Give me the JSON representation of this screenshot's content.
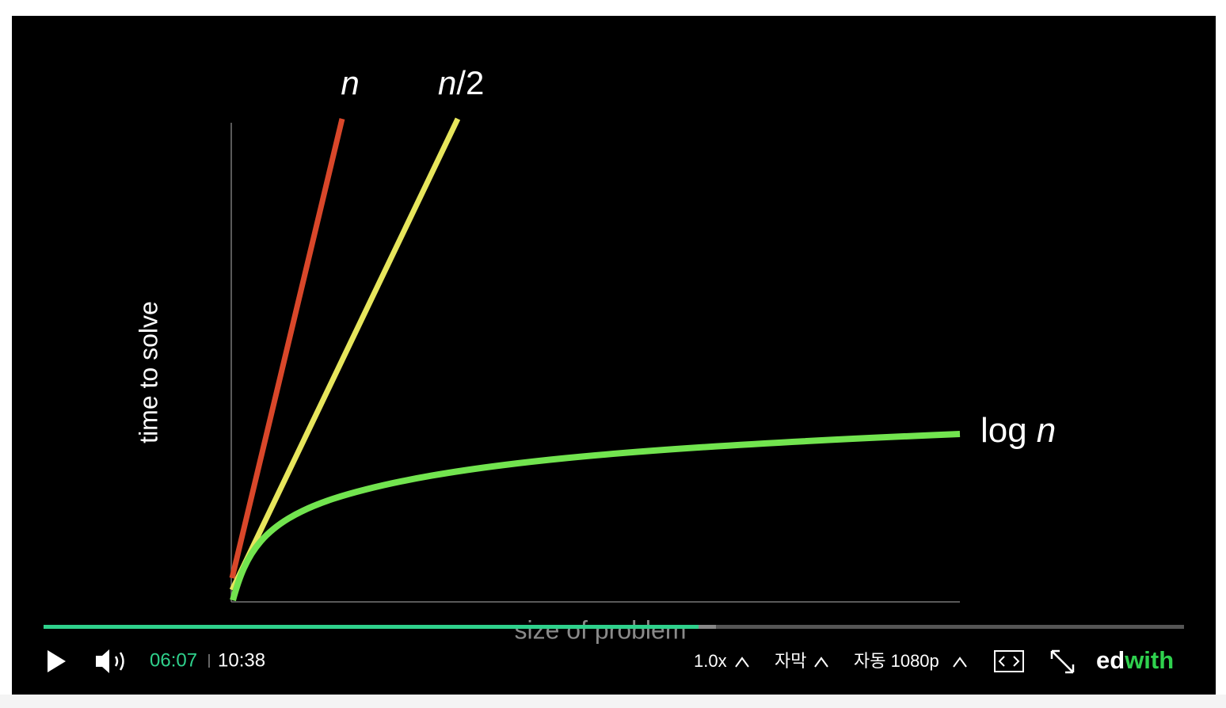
{
  "video": {
    "slide": {
      "label_n": "n",
      "label_half_n": "n",
      "label_half_rest": "/2",
      "label_log_word": "log",
      "label_log_n": "n",
      "y_axis_label": "time to solve",
      "x_axis_label": "size of problem"
    },
    "controls": {
      "current_time": "06:07",
      "duration": "10:38",
      "speed": "1.0x",
      "subtitles": "자막",
      "quality": "자동 1080p",
      "logo_left": "ed",
      "logo_right": "with"
    }
  }
}
